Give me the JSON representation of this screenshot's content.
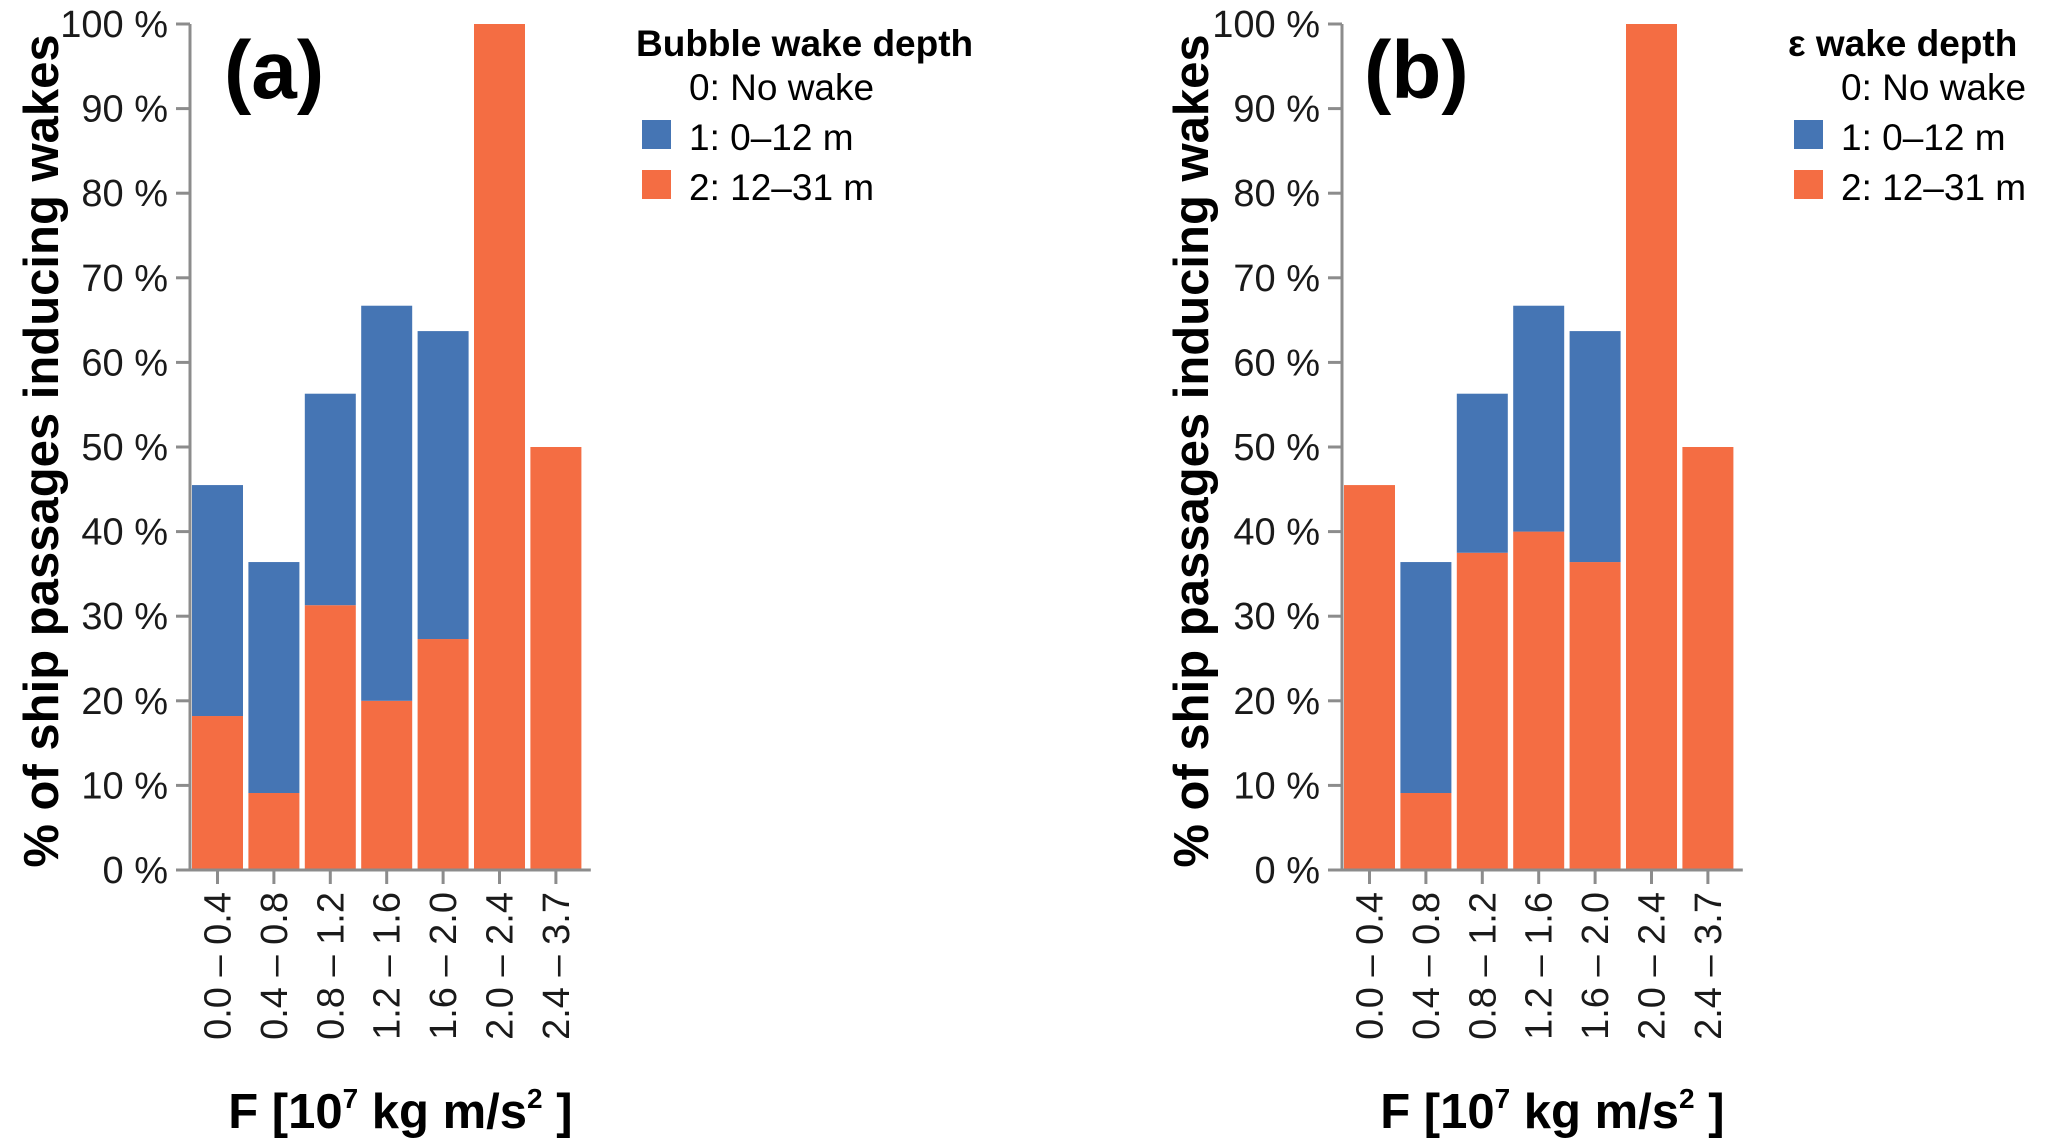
{
  "chart_data": [
    {
      "type": "bar",
      "stacked": true,
      "panel_label": "(a)",
      "title": "",
      "xlabel": "F [10⁷ kg m/s² ]",
      "xlabel_parts": {
        "pre": "F [10",
        "sup1": "7",
        "mid": " kg m/s",
        "sup2": "2",
        "post": " ]"
      },
      "ylabel": "% of ship passages inducing wakes",
      "ylim": [
        0,
        100
      ],
      "yticks": [
        0,
        10,
        20,
        30,
        40,
        50,
        60,
        70,
        80,
        90,
        100
      ],
      "ytick_suffix": " %",
      "grid": false,
      "categories": [
        "0.0 – 0.4",
        "0.4 – 0.8",
        "0.8 – 1.2",
        "1.2 – 1.6",
        "1.6 – 2.0",
        "2.0 – 2.4",
        "2.4 – 3.7"
      ],
      "legend": {
        "title": "Bubble wake depth",
        "position": "top-right",
        "entries": [
          {
            "label": "0: No wake",
            "color": null
          },
          {
            "label": "1: 0–12 m",
            "color": "#4575b4"
          },
          {
            "label": "2: 12–31 m",
            "color": "#f46d43"
          }
        ]
      },
      "series": [
        {
          "name": "2: 12–31 m",
          "color": "#f46d43",
          "values": [
            18.2,
            9.1,
            31.3,
            20.0,
            27.3,
            100.0,
            50.0
          ]
        },
        {
          "name": "1: 0–12 m",
          "color": "#4575b4",
          "values": [
            27.3,
            27.3,
            25.0,
            46.7,
            36.4,
            0.0,
            0.0
          ]
        }
      ]
    },
    {
      "type": "bar",
      "stacked": true,
      "panel_label": "(b)",
      "title": "",
      "xlabel": "F [10⁷ kg m/s² ]",
      "xlabel_parts": {
        "pre": "F [10",
        "sup1": "7",
        "mid": " kg m/s",
        "sup2": "2",
        "post": " ]"
      },
      "ylabel": "% of ship passages inducing wakes",
      "ylim": [
        0,
        100
      ],
      "yticks": [
        0,
        10,
        20,
        30,
        40,
        50,
        60,
        70,
        80,
        90,
        100
      ],
      "ytick_suffix": " %",
      "grid": false,
      "categories": [
        "0.0 – 0.4",
        "0.4 – 0.8",
        "0.8 – 1.2",
        "1.2 – 1.6",
        "1.6 – 2.0",
        "2.0 – 2.4",
        "2.4 – 3.7"
      ],
      "legend": {
        "title": "ε wake depth",
        "position": "top-right",
        "entries": [
          {
            "label": "0: No wake",
            "color": null
          },
          {
            "label": "1: 0–12 m",
            "color": "#4575b4"
          },
          {
            "label": "2: 12–31 m",
            "color": "#f46d43"
          }
        ]
      },
      "series": [
        {
          "name": "2: 12–31 m",
          "color": "#f46d43",
          "values": [
            45.5,
            9.1,
            37.5,
            40.0,
            36.4,
            100.0,
            50.0
          ]
        },
        {
          "name": "1: 0–12 m",
          "color": "#4575b4",
          "values": [
            0.0,
            27.3,
            18.8,
            26.7,
            27.3,
            0.0,
            0.0
          ]
        }
      ]
    }
  ]
}
